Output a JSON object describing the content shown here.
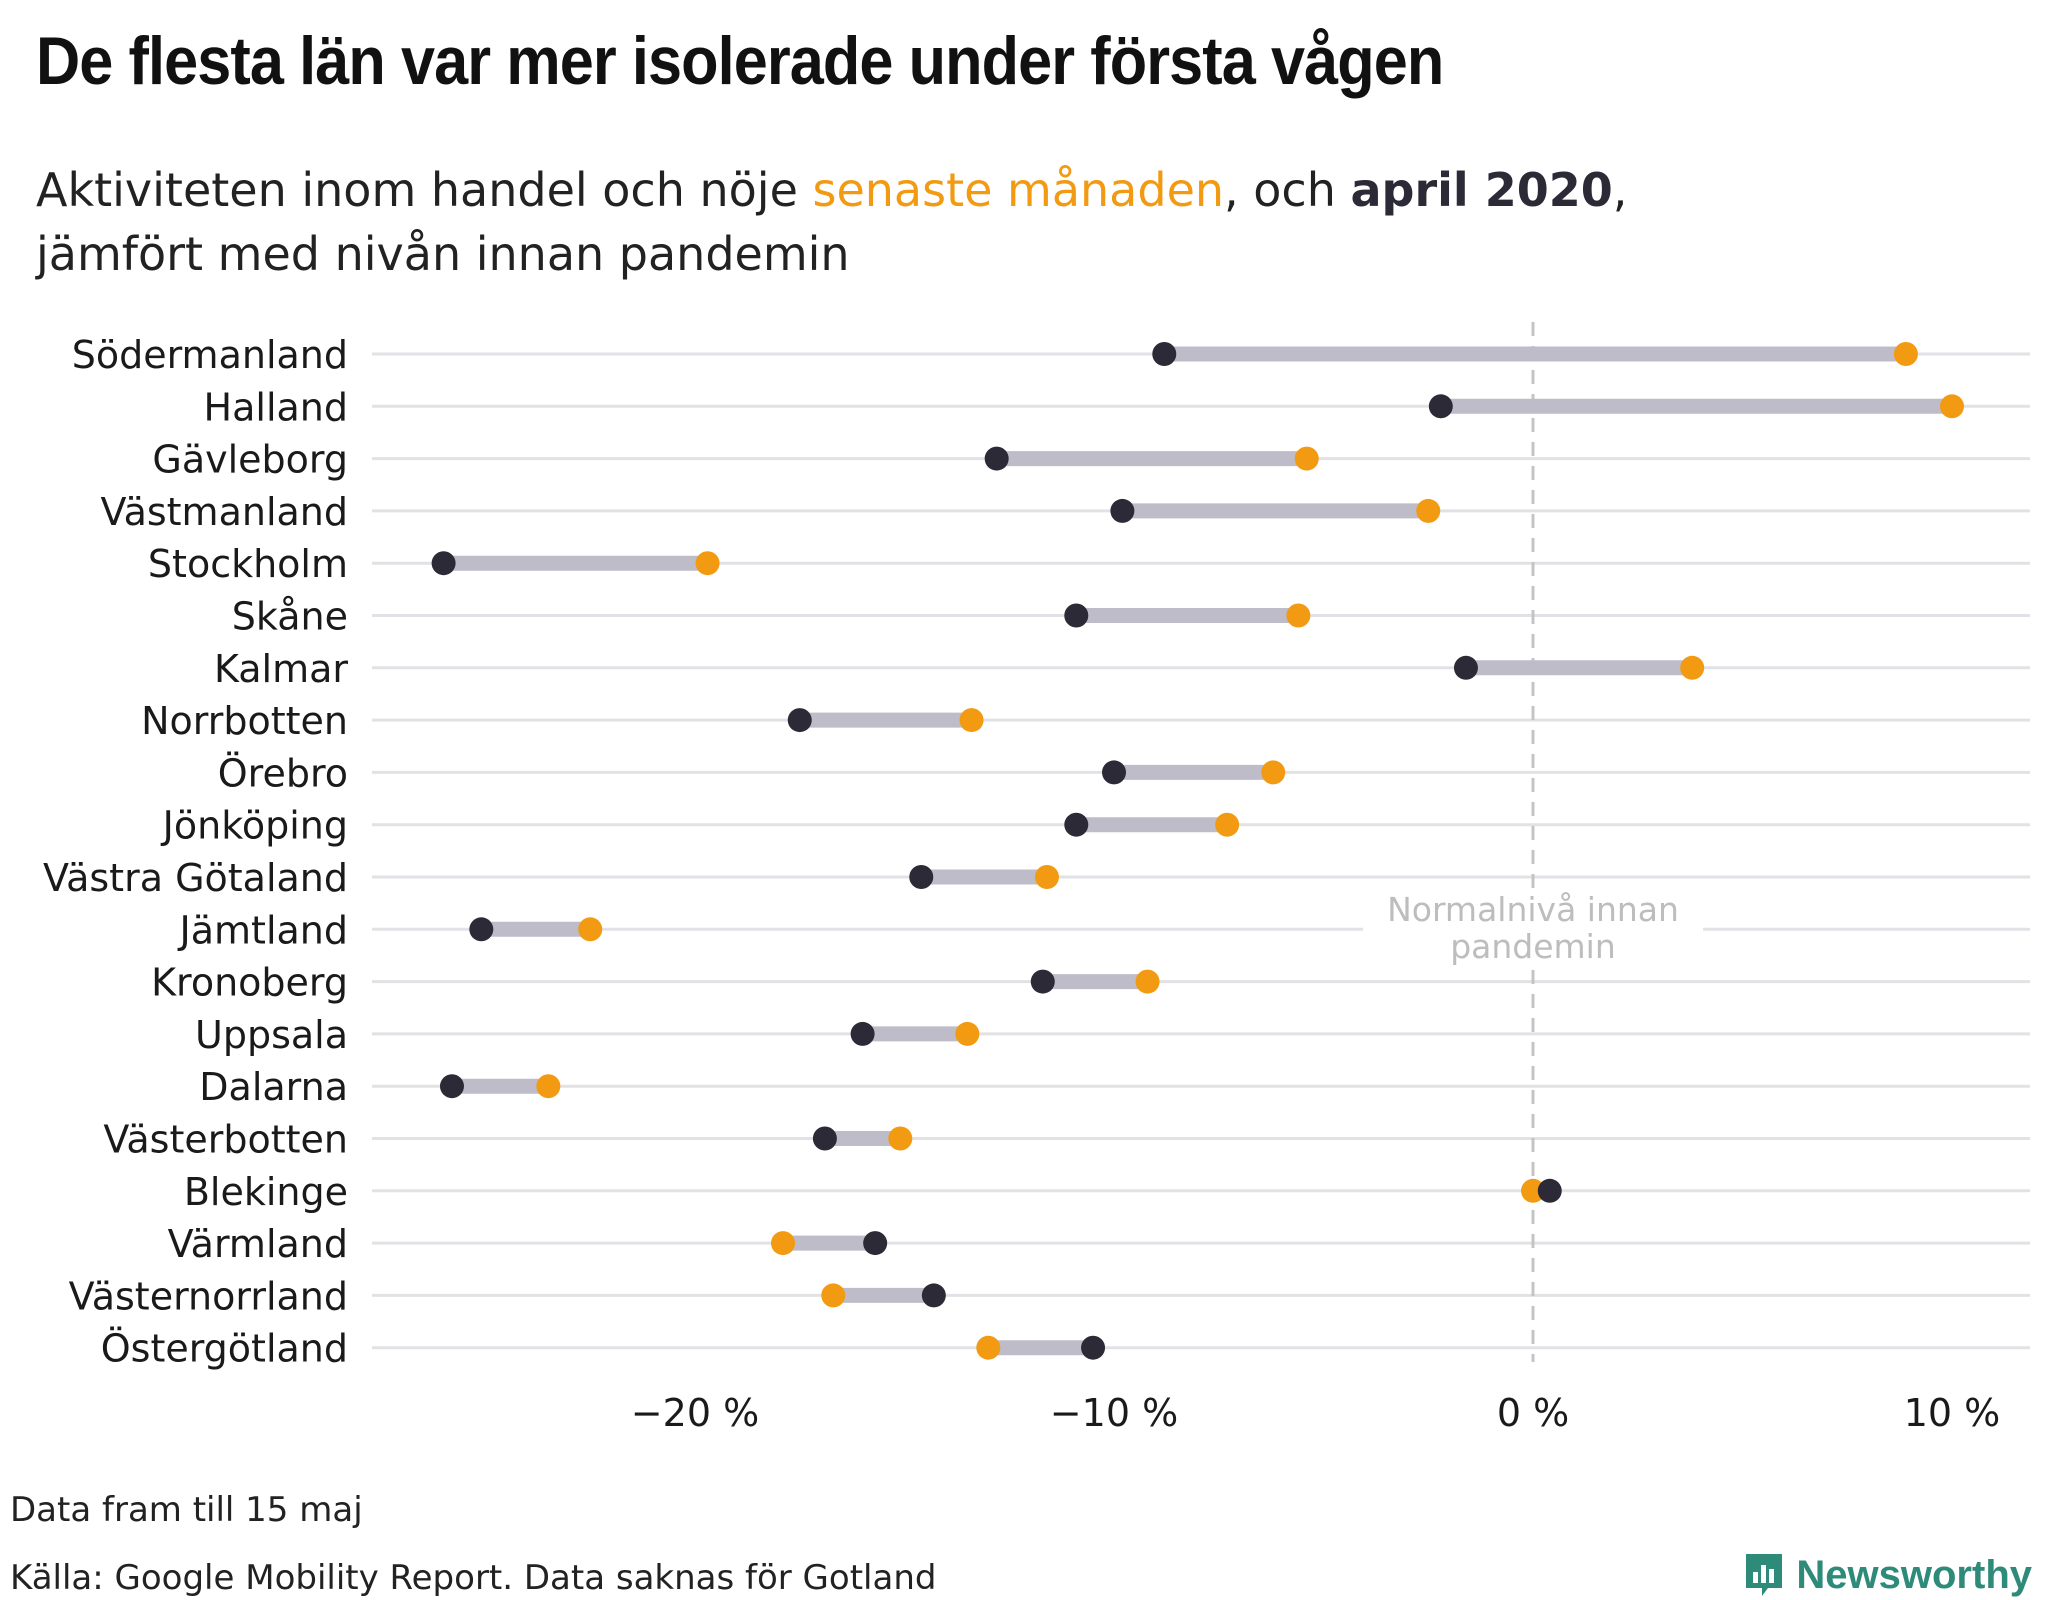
{
  "title": "De flesta län var mer isolerade under första vågen",
  "subtitle": {
    "part1": "Aktiviteten inom handel och nöje ",
    "recent": "senaste månaden",
    "part2": ", och ",
    "april": "april 2020",
    "part3": ",",
    "line2": "jämfört med nivån innan pandemin"
  },
  "footer": {
    "note1": "Data fram till 15 maj",
    "note2": "Källa: Google Mobility Report. Data saknas för Gotland"
  },
  "brand": "Newsworthy",
  "colors": {
    "recent": "#f29a12",
    "april": "#2b2a36",
    "connector": "#bdbcc8",
    "grid": "#e2e2e6",
    "reference": "#c4c4c4"
  },
  "chart_data": {
    "type": "dumbbell",
    "x_ticks": [
      -20,
      -10,
      0,
      10
    ],
    "x_tick_labels": [
      "−20 %",
      "−10 %",
      "0 %",
      "10 %"
    ],
    "xlim": [
      -28,
      11.5
    ],
    "reference_line": {
      "x": 0,
      "label_line1": "Normalnivå innan",
      "label_line2": "pandemin"
    },
    "categories": [
      "Södermanland",
      "Halland",
      "Gävleborg",
      "Västmanland",
      "Stockholm",
      "Skåne",
      "Kalmar",
      "Norrbotten",
      "Örebro",
      "Jönköping",
      "Västra Götaland",
      "Jämtland",
      "Kronoberg",
      "Uppsala",
      "Dalarna",
      "Västerbotten",
      "Blekinge",
      "Värmland",
      "Västernorrland",
      "Östergötland"
    ],
    "series": [
      {
        "name": "april 2020",
        "values": [
          -8.8,
          -2.2,
          -12.8,
          -9.8,
          -26.0,
          -10.9,
          -1.6,
          -17.5,
          -10.0,
          -10.9,
          -14.6,
          -25.1,
          -11.7,
          -16.0,
          -25.8,
          -16.9,
          0.4,
          -15.7,
          -14.3,
          -10.5
        ]
      },
      {
        "name": "senaste månaden",
        "values": [
          8.9,
          10.0,
          -5.4,
          -2.5,
          -19.7,
          -5.6,
          3.8,
          -13.4,
          -6.2,
          -7.3,
          -11.6,
          -22.5,
          -9.2,
          -13.5,
          -23.5,
          -15.1,
          0.0,
          -17.9,
          -16.7,
          -13.0
        ]
      }
    ],
    "grid": true
  }
}
